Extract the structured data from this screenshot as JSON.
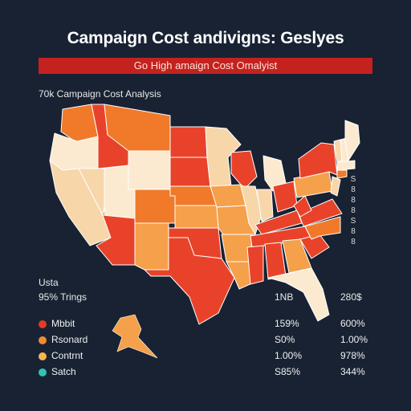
{
  "header": {
    "title": "Campaign Cost andivigns: Geslyes",
    "banner": "Go High amaign Cost Omalyist",
    "subtitle": "70k Campaign Cost Analysis"
  },
  "side_labels": [
    "S",
    "8",
    "8",
    "8",
    "S",
    "8",
    "8"
  ],
  "legend": {
    "region_label": "Usta",
    "header_left": "95% Trings",
    "header_mid": "1NB",
    "header_right": "280$",
    "rows": [
      {
        "label": "Mbbit",
        "v1": "159%",
        "v2": "600%",
        "color": "#e33a22"
      },
      {
        "label": "Rsonard",
        "v1": "S0%",
        "v2": "1.00%",
        "color": "#f28a2d"
      },
      {
        "label": "Contrnt",
        "v1": "1.00%",
        "v2": "978%",
        "color": "#f7b64a"
      },
      {
        "label": "Satch",
        "v1": "S85%",
        "v2": "344%",
        "color": "#2ec4b6"
      }
    ]
  },
  "colors": {
    "red": "#e8432a",
    "dark_orange": "#f07a2a",
    "orange": "#f5a04a",
    "light": "#f7d6aa",
    "pale": "#fbead0",
    "background": "#182233",
    "banner": "#c4221f"
  }
}
